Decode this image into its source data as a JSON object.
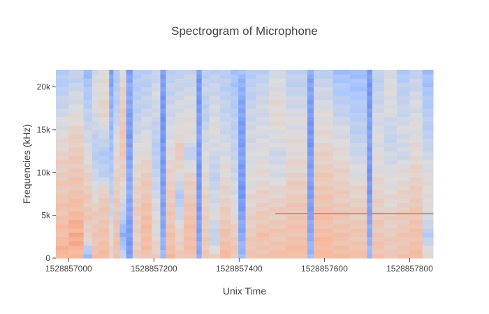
{
  "chart_data": {
    "type": "heatmap",
    "title": "Spectrogram of Microphone",
    "xlabel": "Unix Time",
    "ylabel": "Frequencies (kHz)",
    "xlim": [
      1528856970,
      1528857855
    ],
    "ylim": [
      0,
      22000
    ],
    "x_ticks": [
      {
        "value": 1528857000,
        "label": "1528857000"
      },
      {
        "value": 1528857200,
        "label": "1528857200"
      },
      {
        "value": 1528857400,
        "label": "1528857400"
      },
      {
        "value": 1528857600,
        "label": "1528857600"
      },
      {
        "value": 1528857800,
        "label": "1528857800"
      }
    ],
    "y_ticks": [
      {
        "value": 0,
        "label": "0"
      },
      {
        "value": 5000,
        "label": "5k"
      },
      {
        "value": 10000,
        "label": "10k"
      },
      {
        "value": 15000,
        "label": "15k"
      },
      {
        "value": 20000,
        "label": "20k"
      }
    ],
    "colorscale": [
      "#3b4cc0",
      "#6f92f3",
      "#aac7fd",
      "#dddcdc",
      "#f7b89c",
      "#e7745b",
      "#b40426"
    ],
    "columns": [
      {
        "t0": 1528856970,
        "t1": 1528857000,
        "profile": [
          0.68,
          0.64,
          0.62,
          0.6,
          0.58,
          0.55,
          0.5,
          0.46,
          0.4,
          0.36
        ]
      },
      {
        "t0": 1528857000,
        "t1": 1528857035,
        "profile": [
          0.66,
          0.7,
          0.66,
          0.62,
          0.6,
          0.58,
          0.56,
          0.5,
          0.45,
          0.4
        ]
      },
      {
        "t0": 1528857035,
        "t1": 1528857055,
        "profile": [
          0.3,
          0.55,
          0.6,
          0.58,
          0.55,
          0.5,
          0.45,
          0.4,
          0.35,
          0.3
        ]
      },
      {
        "t0": 1528857055,
        "t1": 1528857070,
        "profile": [
          0.62,
          0.6,
          0.58,
          0.52,
          0.45,
          0.38,
          0.42,
          0.48,
          0.5,
          0.46
        ]
      },
      {
        "t0": 1528857070,
        "t1": 1528857095,
        "profile": [
          0.64,
          0.62,
          0.6,
          0.58,
          0.4,
          0.36,
          0.45,
          0.55,
          0.52,
          0.5
        ]
      },
      {
        "t0": 1528857095,
        "t1": 1528857105,
        "profile": [
          0.55,
          0.5,
          0.45,
          0.4,
          0.36,
          0.32,
          0.3,
          0.28,
          0.25,
          0.2
        ]
      },
      {
        "t0": 1528857105,
        "t1": 1528857120,
        "profile": [
          0.62,
          0.62,
          0.6,
          0.58,
          0.56,
          0.52,
          0.48,
          0.4,
          0.38,
          0.35
        ]
      },
      {
        "t0": 1528857120,
        "t1": 1528857135,
        "profile": [
          0.45,
          0.25,
          0.4,
          0.5,
          0.55,
          0.58,
          0.6,
          0.58,
          0.55,
          0.5
        ]
      },
      {
        "t0": 1528857135,
        "t1": 1528857150,
        "profile": [
          0.2,
          0.2,
          0.22,
          0.25,
          0.25,
          0.22,
          0.2,
          0.22,
          0.25,
          0.22
        ]
      },
      {
        "t0": 1528857150,
        "t1": 1528857170,
        "profile": [
          0.58,
          0.55,
          0.58,
          0.56,
          0.54,
          0.5,
          0.45,
          0.4,
          0.38,
          0.36
        ]
      },
      {
        "t0": 1528857170,
        "t1": 1528857195,
        "profile": [
          0.62,
          0.65,
          0.64,
          0.6,
          0.58,
          0.52,
          0.48,
          0.44,
          0.4,
          0.38
        ]
      },
      {
        "t0": 1528857195,
        "t1": 1528857215,
        "profile": [
          0.58,
          0.52,
          0.5,
          0.46,
          0.42,
          0.38,
          0.4,
          0.45,
          0.48,
          0.42
        ]
      },
      {
        "t0": 1528857215,
        "t1": 1528857228,
        "profile": [
          0.3,
          0.25,
          0.22,
          0.22,
          0.2,
          0.2,
          0.18,
          0.18,
          0.2,
          0.22
        ]
      },
      {
        "t0": 1528857228,
        "t1": 1528857250,
        "profile": [
          0.65,
          0.62,
          0.6,
          0.58,
          0.55,
          0.52,
          0.48,
          0.45,
          0.42,
          0.4
        ]
      },
      {
        "t0": 1528857250,
        "t1": 1528857270,
        "profile": [
          0.58,
          0.55,
          0.45,
          0.35,
          0.5,
          0.6,
          0.52,
          0.48,
          0.44,
          0.4
        ]
      },
      {
        "t0": 1528857270,
        "t1": 1528857300,
        "profile": [
          0.62,
          0.64,
          0.62,
          0.58,
          0.55,
          0.4,
          0.52,
          0.5,
          0.46,
          0.42
        ]
      },
      {
        "t0": 1528857300,
        "t1": 1528857312,
        "profile": [
          0.25,
          0.22,
          0.2,
          0.2,
          0.18,
          0.2,
          0.22,
          0.2,
          0.18,
          0.2
        ]
      },
      {
        "t0": 1528857312,
        "t1": 1528857330,
        "profile": [
          0.6,
          0.58,
          0.56,
          0.55,
          0.52,
          0.48,
          0.45,
          0.38,
          0.42,
          0.4
        ]
      },
      {
        "t0": 1528857330,
        "t1": 1528857355,
        "profile": [
          0.55,
          0.4,
          0.5,
          0.45,
          0.4,
          0.45,
          0.5,
          0.48,
          0.44,
          0.4
        ]
      },
      {
        "t0": 1528857355,
        "t1": 1528857380,
        "profile": [
          0.65,
          0.62,
          0.58,
          0.55,
          0.52,
          0.48,
          0.45,
          0.42,
          0.4,
          0.38
        ]
      },
      {
        "t0": 1528857380,
        "t1": 1528857398,
        "profile": [
          0.6,
          0.58,
          0.52,
          0.48,
          0.45,
          0.42,
          0.4,
          0.38,
          0.35,
          0.32
        ]
      },
      {
        "t0": 1528857398,
        "t1": 1528857415,
        "profile": [
          0.3,
          0.25,
          0.22,
          0.18,
          0.2,
          0.22,
          0.2,
          0.22,
          0.25,
          0.3
        ]
      },
      {
        "t0": 1528857415,
        "t1": 1528857440,
        "profile": [
          0.62,
          0.58,
          0.55,
          0.52,
          0.5,
          0.48,
          0.46,
          0.44,
          0.4,
          0.38
        ]
      },
      {
        "t0": 1528857440,
        "t1": 1528857470,
        "profile": [
          0.6,
          0.62,
          0.58,
          0.55,
          0.52,
          0.5,
          0.48,
          0.46,
          0.44,
          0.4
        ]
      },
      {
        "t0": 1528857470,
        "t1": 1528857510,
        "profile": [
          0.62,
          0.6,
          0.58,
          0.55,
          0.48,
          0.45,
          0.5,
          0.52,
          0.5,
          0.46
        ]
      },
      {
        "t0": 1528857510,
        "t1": 1528857560,
        "profile": [
          0.64,
          0.62,
          0.6,
          0.58,
          0.55,
          0.52,
          0.5,
          0.48,
          0.42,
          0.4
        ]
      },
      {
        "t0": 1528857560,
        "t1": 1528857575,
        "profile": [
          0.3,
          0.25,
          0.22,
          0.2,
          0.22,
          0.2,
          0.18,
          0.2,
          0.22,
          0.24
        ]
      },
      {
        "t0": 1528857575,
        "t1": 1528857620,
        "profile": [
          0.66,
          0.64,
          0.62,
          0.6,
          0.58,
          0.55,
          0.52,
          0.5,
          0.45,
          0.4
        ]
      },
      {
        "t0": 1528857620,
        "t1": 1528857660,
        "profile": [
          0.64,
          0.62,
          0.6,
          0.58,
          0.55,
          0.52,
          0.48,
          0.42,
          0.36,
          0.32
        ]
      },
      {
        "t0": 1528857660,
        "t1": 1528857700,
        "profile": [
          0.62,
          0.6,
          0.58,
          0.55,
          0.5,
          0.45,
          0.4,
          0.38,
          0.34,
          0.3
        ]
      },
      {
        "t0": 1528857700,
        "t1": 1528857712,
        "profile": [
          0.3,
          0.25,
          0.22,
          0.2,
          0.18,
          0.2,
          0.22,
          0.2,
          0.18,
          0.2
        ]
      },
      {
        "t0": 1528857712,
        "t1": 1528857740,
        "profile": [
          0.62,
          0.6,
          0.58,
          0.55,
          0.52,
          0.5,
          0.48,
          0.46,
          0.42,
          0.4
        ]
      },
      {
        "t0": 1528857740,
        "t1": 1528857770,
        "profile": [
          0.6,
          0.58,
          0.55,
          0.52,
          0.5,
          0.45,
          0.42,
          0.48,
          0.5,
          0.48
        ]
      },
      {
        "t0": 1528857770,
        "t1": 1528857800,
        "profile": [
          0.62,
          0.6,
          0.58,
          0.55,
          0.52,
          0.45,
          0.48,
          0.44,
          0.4,
          0.36
        ]
      },
      {
        "t0": 1528857800,
        "t1": 1528857830,
        "profile": [
          0.64,
          0.62,
          0.6,
          0.58,
          0.55,
          0.52,
          0.5,
          0.48,
          0.46,
          0.4
        ]
      },
      {
        "t0": 1528857830,
        "t1": 1528857855,
        "profile": [
          0.55,
          0.38,
          0.48,
          0.52,
          0.5,
          0.45,
          0.4,
          0.38,
          0.34,
          0.3
        ]
      }
    ],
    "line_segment": {
      "t0": 1528857485,
      "t1": 1528857855,
      "freq": 5200
    }
  }
}
